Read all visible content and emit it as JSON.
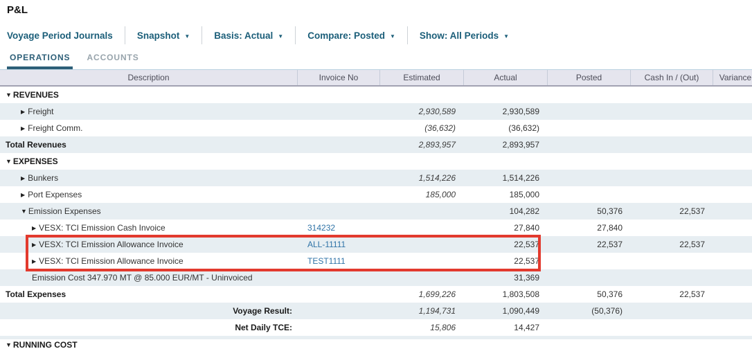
{
  "page": {
    "title": "P&L"
  },
  "toolbar": {
    "items": [
      {
        "name": "voyage-period-journals-button",
        "label": "Voyage Period Journals",
        "dropdown": false
      },
      {
        "name": "snapshot-dropdown",
        "label": "Snapshot",
        "dropdown": true
      },
      {
        "name": "basis-dropdown",
        "label": "Basis: Actual",
        "dropdown": true
      },
      {
        "name": "compare-dropdown",
        "label": "Compare: Posted",
        "dropdown": true
      },
      {
        "name": "show-periods-dropdown",
        "label": "Show: All Periods",
        "dropdown": true
      }
    ]
  },
  "tabs": [
    {
      "name": "tab-operations",
      "label": "OPERATIONS",
      "active": true
    },
    {
      "name": "tab-accounts",
      "label": "ACCOUNTS",
      "active": false
    }
  ],
  "table": {
    "columns": [
      {
        "key": "desc",
        "label": "Description"
      },
      {
        "key": "inv",
        "label": "Invoice No"
      },
      {
        "key": "est",
        "label": "Estimated"
      },
      {
        "key": "act",
        "label": "Actual"
      },
      {
        "key": "post",
        "label": "Posted"
      },
      {
        "key": "cash",
        "label": "Cash In / (Out)"
      },
      {
        "key": "var",
        "label": "Variance"
      }
    ],
    "rows": [
      {
        "style": "section",
        "indent": 0,
        "arrow": "down",
        "desc": "REVENUES"
      },
      {
        "style": "item",
        "indent": 1,
        "arrow": "right",
        "desc": "Freight",
        "est": "2,930,589",
        "act": "2,930,589"
      },
      {
        "style": "item",
        "indent": 1,
        "arrow": "right",
        "desc": "Freight Comm.",
        "est": "(36,632)",
        "act": "(36,632)"
      },
      {
        "style": "total",
        "indent": 0,
        "arrow": "",
        "desc": "Total Revenues",
        "est": "2,893,957",
        "act": "2,893,957"
      },
      {
        "style": "section",
        "indent": 0,
        "arrow": "down",
        "desc": "EXPENSES"
      },
      {
        "style": "item",
        "indent": 1,
        "arrow": "right",
        "desc": "Bunkers",
        "est": "1,514,226",
        "act": "1,514,226"
      },
      {
        "style": "item",
        "indent": 1,
        "arrow": "right",
        "desc": "Port Expenses",
        "est": "185,000",
        "act": "185,000"
      },
      {
        "style": "item",
        "indent": 1,
        "arrow": "down",
        "desc": "Emission Expenses",
        "act": "104,282",
        "post": "50,376",
        "cash": "22,537"
      },
      {
        "style": "item",
        "indent": 2,
        "arrow": "right",
        "desc": "VESX: TCI Emission Cash Invoice",
        "inv": "314232",
        "act": "27,840",
        "post": "27,840"
      },
      {
        "style": "item",
        "indent": 2,
        "arrow": "right",
        "desc": "VESX: TCI Emission Allowance Invoice",
        "inv": "ALL-11111",
        "act": "22,537",
        "post": "22,537",
        "cash": "22,537"
      },
      {
        "style": "item",
        "indent": 2,
        "arrow": "right",
        "desc": "VESX: TCI Emission Allowance Invoice",
        "inv": "TEST1111",
        "act": "22,537"
      },
      {
        "style": "item",
        "indent": 2,
        "arrow": "",
        "desc": "Emission Cost 347.970 MT @ 85.000 EUR/MT - Uninvoiced",
        "act": "31,369"
      },
      {
        "style": "total",
        "indent": 0,
        "arrow": "",
        "desc": "Total Expenses",
        "est": "1,699,226",
        "act": "1,803,508",
        "post": "50,376",
        "cash": "22,537"
      },
      {
        "style": "result",
        "desc": "Voyage Result:",
        "est": "1,194,731",
        "act": "1,090,449",
        "post": "(50,376)"
      },
      {
        "style": "result",
        "desc": "Net Daily TCE:",
        "est": "15,806",
        "act": "14,427"
      },
      {
        "spacer": true
      },
      {
        "style": "section",
        "indent": 0,
        "arrow": "down",
        "desc": "RUNNING COST"
      }
    ]
  },
  "annotation": {
    "type": "highlight-box",
    "color": "#e23a2e"
  },
  "colors": {
    "toolbar_text": "#1b5e79",
    "active_tab": "#2d5f78",
    "inactive_tab": "#98a4ac",
    "row_stripe": "#e7eef2",
    "header_bg": "#e5e5ee",
    "invoice_link": "#2f73a7",
    "annotation_red": "#e23a2e"
  }
}
